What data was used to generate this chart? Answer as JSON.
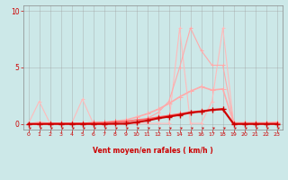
{
  "xlabel": "Vent moyen/en rafales ( km/h )",
  "xlim": [
    -0.5,
    23.5
  ],
  "ylim": [
    -0.5,
    10.5
  ],
  "yticks": [
    0,
    5,
    10
  ],
  "xticks": [
    0,
    1,
    2,
    3,
    4,
    5,
    6,
    7,
    8,
    9,
    10,
    11,
    12,
    13,
    14,
    15,
    16,
    17,
    18,
    19,
    20,
    21,
    22,
    23
  ],
  "bg_color": "#cce8e8",
  "grid_color": "#999999",
  "line_spike_x": [
    0,
    1,
    2,
    3,
    4,
    5,
    6,
    7,
    8,
    9,
    10,
    11,
    12,
    13,
    14,
    15,
    16,
    17,
    18,
    19,
    20,
    21,
    22,
    23
  ],
  "line_spike_y": [
    0.05,
    2.0,
    0.05,
    0.05,
    0.05,
    2.2,
    0.05,
    0.05,
    0.05,
    0.05,
    0.05,
    0.05,
    0.05,
    0.05,
    8.5,
    0.05,
    0.05,
    2.0,
    8.5,
    0.05,
    0.05,
    0.05,
    0.05,
    0.05
  ],
  "line_spike_color": "#ffbbbb",
  "line_spike_lw": 0.8,
  "line_peak_x": [
    0,
    1,
    2,
    3,
    4,
    5,
    6,
    7,
    8,
    9,
    10,
    11,
    12,
    13,
    14,
    15,
    16,
    17,
    18,
    19,
    20,
    21,
    22,
    23
  ],
  "line_peak_y": [
    0.0,
    0.0,
    0.0,
    0.0,
    0.0,
    0.0,
    0.0,
    0.0,
    0.0,
    0.05,
    0.2,
    0.5,
    1.0,
    2.0,
    5.0,
    8.5,
    6.5,
    5.2,
    5.2,
    0.1,
    0.1,
    0.1,
    0.1,
    0.1
  ],
  "line_peak_color": "#ffaaaa",
  "line_peak_lw": 0.8,
  "line_med_x": [
    0,
    1,
    2,
    3,
    4,
    5,
    6,
    7,
    8,
    9,
    10,
    11,
    12,
    13,
    14,
    15,
    16,
    17,
    18,
    19,
    20,
    21,
    22,
    23
  ],
  "line_med_y": [
    0.0,
    0.15,
    0.05,
    0.05,
    0.05,
    0.05,
    0.1,
    0.15,
    0.25,
    0.35,
    0.6,
    0.9,
    1.3,
    1.8,
    2.4,
    2.9,
    3.3,
    3.0,
    3.1,
    0.1,
    0.1,
    0.1,
    0.1,
    0.15
  ],
  "line_med_color": "#ffaaaa",
  "line_med_lw": 1.2,
  "line_dark_x": [
    0,
    1,
    2,
    3,
    4,
    5,
    6,
    7,
    8,
    9,
    10,
    11,
    12,
    13,
    14,
    15,
    16,
    17,
    18,
    19,
    20,
    21,
    22,
    23
  ],
  "line_dark_y": [
    0.0,
    0.0,
    0.05,
    0.05,
    0.05,
    0.05,
    0.1,
    0.12,
    0.18,
    0.22,
    0.35,
    0.45,
    0.6,
    0.75,
    0.9,
    1.05,
    1.15,
    1.25,
    1.35,
    0.02,
    0.02,
    0.02,
    0.02,
    0.02
  ],
  "line_dark_color": "#ff6666",
  "line_dark_lw": 1.2,
  "line_flat_x": [
    0,
    1,
    2,
    3,
    4,
    5,
    6,
    7,
    8,
    9,
    10,
    11,
    12,
    13,
    14,
    15,
    16,
    17,
    18,
    19,
    20,
    21,
    22,
    23
  ],
  "line_flat_y": [
    0.0,
    0.0,
    0.0,
    0.0,
    0.0,
    0.0,
    0.0,
    0.0,
    0.02,
    0.02,
    0.15,
    0.3,
    0.5,
    0.65,
    0.8,
    1.0,
    1.1,
    1.25,
    1.3,
    0.0,
    0.0,
    0.0,
    0.0,
    0.0
  ],
  "line_flat_color": "#cc0000",
  "line_flat_lw": 1.5,
  "marker_color": "#cc0000",
  "marker_size": 3,
  "arrow_color": "#cc0000"
}
